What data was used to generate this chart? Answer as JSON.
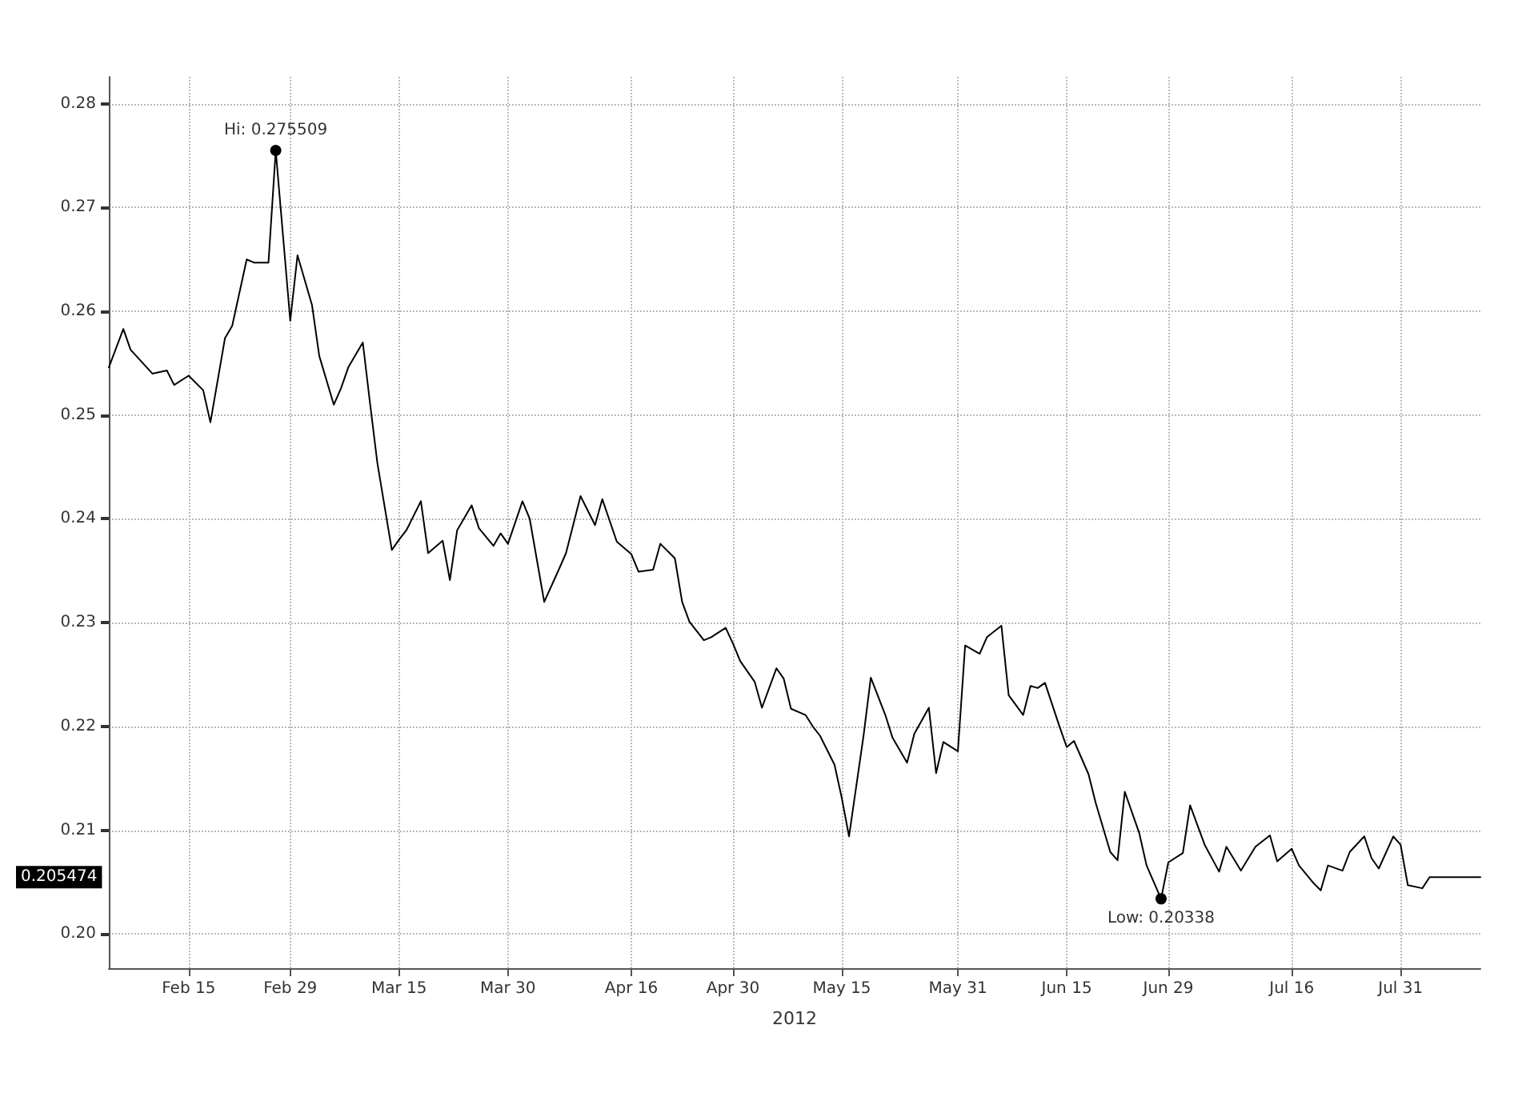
{
  "chart_data": {
    "type": "line",
    "xlabel": "2012",
    "x": [
      "2012-02-04",
      "2012-02-06",
      "2012-02-07",
      "2012-02-10",
      "2012-02-12",
      "2012-02-13",
      "2012-02-15",
      "2012-02-17",
      "2012-02-18",
      "2012-02-20",
      "2012-02-21",
      "2012-02-23",
      "2012-02-24",
      "2012-02-26",
      "2012-02-27",
      "2012-02-29",
      "2012-03-01",
      "2012-03-03",
      "2012-03-04",
      "2012-03-06",
      "2012-03-07",
      "2012-03-08",
      "2012-03-10",
      "2012-03-11",
      "2012-03-12",
      "2012-03-14",
      "2012-03-15",
      "2012-03-16",
      "2012-03-18",
      "2012-03-19",
      "2012-03-21",
      "2012-03-22",
      "2012-03-23",
      "2012-03-25",
      "2012-03-26",
      "2012-03-28",
      "2012-03-29",
      "2012-03-30",
      "2012-04-01",
      "2012-04-02",
      "2012-04-04",
      "2012-04-06",
      "2012-04-07",
      "2012-04-09",
      "2012-04-11",
      "2012-04-12",
      "2012-04-14",
      "2012-04-16",
      "2012-04-17",
      "2012-04-19",
      "2012-04-20",
      "2012-04-22",
      "2012-04-23",
      "2012-04-24",
      "2012-04-26",
      "2012-04-27",
      "2012-04-29",
      "2012-04-30",
      "2012-05-01",
      "2012-05-03",
      "2012-05-04",
      "2012-05-06",
      "2012-05-07",
      "2012-05-08",
      "2012-05-10",
      "2012-05-11",
      "2012-05-12",
      "2012-05-14",
      "2012-05-15",
      "2012-05-16",
      "2012-05-18",
      "2012-05-19",
      "2012-05-21",
      "2012-05-22",
      "2012-05-24",
      "2012-05-25",
      "2012-05-27",
      "2012-05-28",
      "2012-05-29",
      "2012-05-31",
      "2012-06-01",
      "2012-06-03",
      "2012-06-04",
      "2012-06-06",
      "2012-06-07",
      "2012-06-09",
      "2012-06-10",
      "2012-06-11",
      "2012-06-12",
      "2012-06-14",
      "2012-06-15",
      "2012-06-16",
      "2012-06-18",
      "2012-06-19",
      "2012-06-21",
      "2012-06-22",
      "2012-06-23",
      "2012-06-25",
      "2012-06-26",
      "2012-06-28",
      "2012-06-29",
      "2012-07-01",
      "2012-07-02",
      "2012-07-04",
      "2012-07-06",
      "2012-07-07",
      "2012-07-09",
      "2012-07-11",
      "2012-07-13",
      "2012-07-14",
      "2012-07-16",
      "2012-07-17",
      "2012-07-19",
      "2012-07-20",
      "2012-07-21",
      "2012-07-23",
      "2012-07-24",
      "2012-07-26",
      "2012-07-27",
      "2012-07-28",
      "2012-07-30",
      "2012-07-31",
      "2012-08-01",
      "2012-08-03",
      "2012-08-04",
      "2012-08-11"
    ],
    "values": [
      0.2546,
      0.2583,
      0.2563,
      0.254,
      0.2543,
      0.2529,
      0.2538,
      0.2524,
      0.2493,
      0.2574,
      0.2586,
      0.265,
      0.2647,
      0.2647,
      0.275509,
      0.2591,
      0.2654,
      0.2606,
      0.2557,
      0.251,
      0.2526,
      0.2546,
      0.257,
      0.2511,
      0.2454,
      0.237,
      0.238,
      0.2389,
      0.2417,
      0.2367,
      0.2379,
      0.2341,
      0.2389,
      0.2413,
      0.2391,
      0.2374,
      0.2386,
      0.2376,
      0.2417,
      0.24,
      0.232,
      0.2351,
      0.2367,
      0.2422,
      0.2394,
      0.2419,
      0.2378,
      0.2366,
      0.2349,
      0.2351,
      0.2376,
      0.2362,
      0.232,
      0.2301,
      0.2283,
      0.2286,
      0.2295,
      0.228,
      0.2263,
      0.2243,
      0.2218,
      0.2256,
      0.2246,
      0.2217,
      0.2211,
      0.22,
      0.2191,
      0.2163,
      0.2131,
      0.2094,
      0.2191,
      0.2247,
      0.2211,
      0.2189,
      0.2165,
      0.2193,
      0.2218,
      0.2155,
      0.2185,
      0.2176,
      0.2278,
      0.227,
      0.2286,
      0.2297,
      0.223,
      0.2211,
      0.2239,
      0.2237,
      0.2242,
      0.22,
      0.218,
      0.2186,
      0.2154,
      0.2126,
      0.2079,
      0.2071,
      0.2137,
      0.2097,
      0.2066,
      0.20338,
      0.2069,
      0.2078,
      0.2124,
      0.2086,
      0.206,
      0.2084,
      0.2061,
      0.2084,
      0.2095,
      0.207,
      0.2082,
      0.2066,
      0.2049,
      0.2042,
      0.2066,
      0.2061,
      0.2079,
      0.2094,
      0.2073,
      0.2063,
      0.2094,
      0.2086,
      0.2047,
      0.2044,
      0.205474,
      0.205474
    ],
    "color": "#000000",
    "marker": "none",
    "line_style": "solid",
    "grid": true,
    "xlim": [
      "2012-02-04",
      "2012-08-11"
    ],
    "xticks": [
      {
        "value": "2012-02-15",
        "label": "Feb 15"
      },
      {
        "value": "2012-02-29",
        "label": "Feb 29"
      },
      {
        "value": "2012-03-15",
        "label": "Mar 15"
      },
      {
        "value": "2012-03-30",
        "label": "Mar 30"
      },
      {
        "value": "2012-04-16",
        "label": "Apr 16"
      },
      {
        "value": "2012-04-30",
        "label": "Apr 30"
      },
      {
        "value": "2012-05-15",
        "label": "May 15"
      },
      {
        "value": "2012-05-31",
        "label": "May 31"
      },
      {
        "value": "2012-06-15",
        "label": "Jun 15"
      },
      {
        "value": "2012-06-29",
        "label": "Jun 29"
      },
      {
        "value": "2012-07-16",
        "label": "Jul 16"
      },
      {
        "value": "2012-07-31",
        "label": "Jul 31"
      }
    ],
    "ylim": [
      0.1967,
      0.2826
    ],
    "yticks": [
      {
        "value": 0.2,
        "label": "0.20"
      },
      0.21,
      0.22,
      0.23,
      0.24,
      0.25,
      0.26,
      0.27,
      0.28
    ],
    "annotations": [
      {
        "text": "Hi: 0.275509",
        "x": "2012-02-27",
        "y": 0.275509
      },
      {
        "text": "Low: 0.20338",
        "x": "2012-06-28",
        "y": 0.20338
      },
      "0.205474"
    ]
  }
}
